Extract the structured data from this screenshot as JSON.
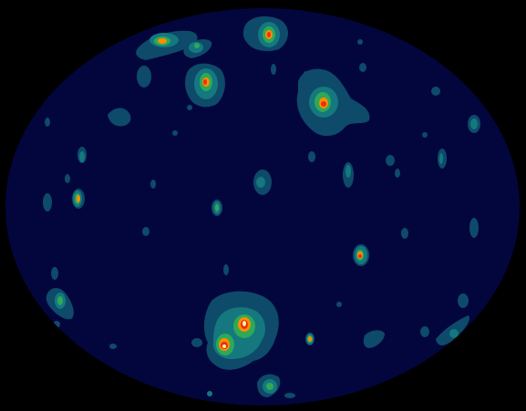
{
  "map": {
    "projection": "aitoff-hammer",
    "background_color": "#000000",
    "sphere_color": "#03063d",
    "contour_levels": [
      {
        "level": 1,
        "color": "#0e4a6a"
      },
      {
        "level": 2,
        "color": "#14787e"
      },
      {
        "level": 3,
        "color": "#2fa858"
      },
      {
        "level": 4,
        "color": "#ff8c00"
      },
      {
        "level": 5,
        "color": "#e83010"
      },
      {
        "level": 6,
        "color": "#fff2b0"
      }
    ],
    "sources": [
      {
        "lon": -153,
        "lat": 77,
        "peak": 4
      },
      {
        "lon": -112,
        "lat": 72,
        "peak": 2
      },
      {
        "lon": -95,
        "lat": 59,
        "peak": 5
      },
      {
        "lon": -20,
        "lat": 78,
        "peak": 5
      },
      {
        "lon": 37,
        "lat": 51,
        "peak": 5
      },
      {
        "lon": -33,
        "lat": 13,
        "peak": 1
      },
      {
        "lon": -144,
        "lat": 10,
        "peak": 4
      },
      {
        "lon": -97,
        "lat": -4,
        "peak": 2
      },
      {
        "lon": 67,
        "lat": -20,
        "peak": 5
      },
      {
        "lon": -161,
        "lat": -47,
        "peak": 2
      },
      {
        "lon": -26,
        "lat": -61,
        "peak": 6
      },
      {
        "lon": -38,
        "lat": -72,
        "peak": 6
      },
      {
        "lon": 27,
        "lat": -66,
        "peak": 4
      },
      {
        "lon": -5,
        "lat": -77,
        "peak": 2
      },
      {
        "lon": 126,
        "lat": -38,
        "peak": 1
      }
    ]
  }
}
